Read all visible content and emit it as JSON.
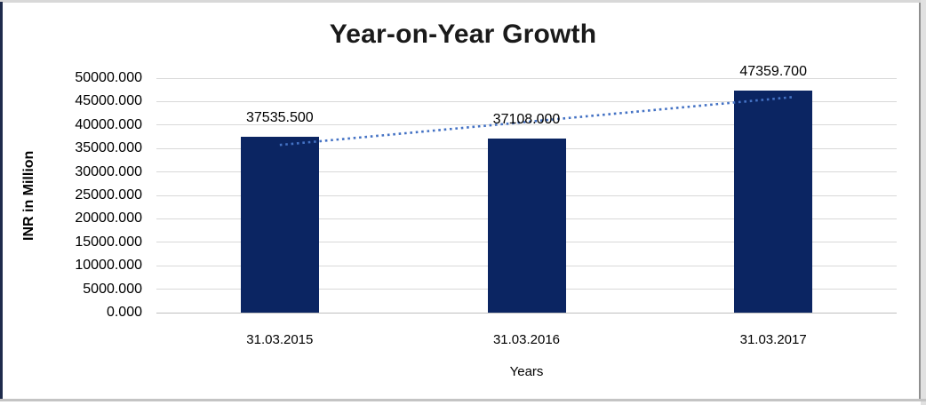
{
  "chart_data": {
    "type": "bar",
    "title": "Year-on-Year Growth",
    "xlabel": "Years",
    "ylabel": "INR in Million",
    "categories": [
      "31.03.2015",
      "31.03.2016",
      "31.03.2017"
    ],
    "values": [
      37535.5,
      37108.0,
      47359.7
    ],
    "value_labels": [
      "37535.500",
      "37108.000",
      "47359.700"
    ],
    "y_ticks": [
      "50000.000",
      "45000.000",
      "40000.000",
      "35000.000",
      "30000.000",
      "25000.000",
      "20000.000",
      "15000.000",
      "10000.000",
      "5000.000",
      "0.000"
    ],
    "ylim": [
      0,
      50000
    ],
    "y_step": 5000,
    "grid": true,
    "legend": false,
    "bar_color": "#0b2562",
    "gridline_color": "#d9d9d9",
    "axis_line_color": "#bfbfbf",
    "text_color": "#000000",
    "title_color": "#1a1a1a",
    "trendline": {
      "type": "linear",
      "style": "dotted",
      "color": "#4472c4"
    }
  }
}
